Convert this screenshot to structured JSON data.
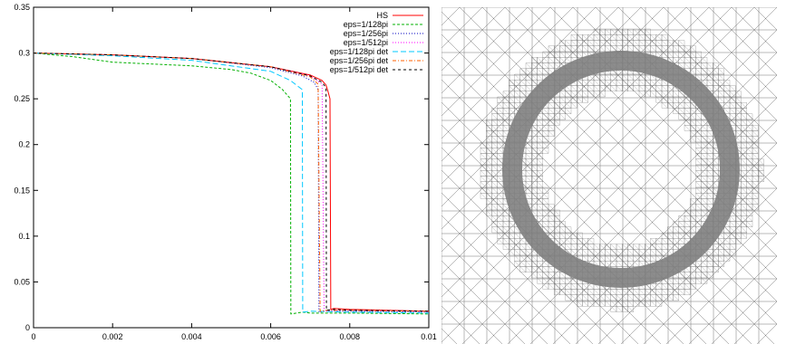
{
  "chart_data": {
    "type": "line",
    "title": "",
    "xlabel": "",
    "ylabel": "",
    "xlim": [
      0,
      0.01
    ],
    "ylim": [
      0,
      0.35
    ],
    "grid": false,
    "legend_position": "top-right",
    "x_ticks": [
      "0",
      "0.002",
      "0.004",
      "0.006",
      "0.008",
      "0.01"
    ],
    "y_ticks": [
      "0",
      "0.05",
      "0.1",
      "0.15",
      "0.2",
      "0.25",
      "0.3",
      "0.35"
    ],
    "series": [
      {
        "name": "HS",
        "color": "#ff0000",
        "dash": "",
        "x": [
          0,
          0.002,
          0.004,
          0.006,
          0.007,
          0.0073,
          0.0074,
          0.00745,
          0.0075,
          0.00752,
          0.0076,
          0.008,
          0.01
        ],
        "y": [
          0.3,
          0.298,
          0.294,
          0.285,
          0.276,
          0.27,
          0.265,
          0.258,
          0.25,
          0.02,
          0.021,
          0.02,
          0.018
        ]
      },
      {
        "name": "eps=1/128pi",
        "color": "#00b000",
        "dash": "3,2",
        "x": [
          0,
          0.001,
          0.002,
          0.003,
          0.004,
          0.005,
          0.0055,
          0.006,
          0.0063,
          0.0065,
          0.00651,
          0.0068,
          0.007,
          0.008,
          0.01
        ],
        "y": [
          0.3,
          0.296,
          0.29,
          0.288,
          0.286,
          0.282,
          0.278,
          0.27,
          0.26,
          0.25,
          0.015,
          0.017,
          0.016,
          0.016,
          0.015
        ]
      },
      {
        "name": "eps=1/256pi",
        "color": "#0000c0",
        "dash": "1,2",
        "x": [
          0,
          0.002,
          0.004,
          0.006,
          0.0068,
          0.0071,
          0.0072,
          0.00722,
          0.0074,
          0.008,
          0.01
        ],
        "y": [
          0.3,
          0.298,
          0.294,
          0.284,
          0.275,
          0.268,
          0.26,
          0.017,
          0.018,
          0.018,
          0.017
        ]
      },
      {
        "name": "eps=1/512pi",
        "color": "#ff00ff",
        "dash": "1,2",
        "x": [
          0,
          0.002,
          0.004,
          0.006,
          0.007,
          0.0073,
          0.00735,
          0.0075,
          0.008,
          0.01
        ],
        "y": [
          0.3,
          0.298,
          0.294,
          0.285,
          0.275,
          0.266,
          0.018,
          0.019,
          0.019,
          0.018
        ]
      },
      {
        "name": "eps=1/128pi det",
        "color": "#00c8ff",
        "dash": "6,3",
        "x": [
          0,
          0.002,
          0.004,
          0.006,
          0.0065,
          0.0068,
          0.00681,
          0.007,
          0.008,
          0.01
        ],
        "y": [
          0.3,
          0.297,
          0.292,
          0.28,
          0.27,
          0.26,
          0.017,
          0.018,
          0.017,
          0.016
        ]
      },
      {
        "name": "eps=1/256pi det",
        "color": "#ff6000",
        "dash": "4,2,1,2",
        "x": [
          0,
          0.002,
          0.004,
          0.006,
          0.007,
          0.0072,
          0.00725,
          0.0074,
          0.008,
          0.01
        ],
        "y": [
          0.3,
          0.298,
          0.294,
          0.285,
          0.274,
          0.266,
          0.018,
          0.019,
          0.019,
          0.018
        ]
      },
      {
        "name": "eps=1/512pi det",
        "color": "#000000",
        "dash": "3,3",
        "x": [
          0,
          0.002,
          0.004,
          0.006,
          0.007,
          0.0073,
          0.0074,
          0.00741,
          0.0076,
          0.008,
          0.01
        ],
        "y": [
          0.3,
          0.298,
          0.294,
          0.285,
          0.275,
          0.268,
          0.262,
          0.019,
          0.02,
          0.019,
          0.018
        ]
      }
    ]
  },
  "mesh": {
    "grid_color": "#777777",
    "ring_color": "#808080"
  }
}
